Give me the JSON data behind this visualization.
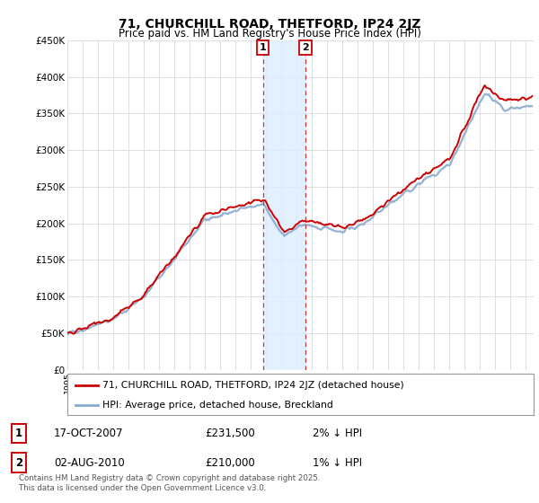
{
  "title_line1": "71, CHURCHILL ROAD, THETFORD, IP24 2JZ",
  "title_line2": "Price paid vs. HM Land Registry's House Price Index (HPI)",
  "ylabel_ticks": [
    "£0",
    "£50K",
    "£100K",
    "£150K",
    "£200K",
    "£250K",
    "£300K",
    "£350K",
    "£400K",
    "£450K"
  ],
  "ytick_vals": [
    0,
    50000,
    100000,
    150000,
    200000,
    250000,
    300000,
    350000,
    400000,
    450000
  ],
  "xmin": 1995.0,
  "xmax": 2025.5,
  "ymin": 0,
  "ymax": 450000,
  "legend_line1": "71, CHURCHILL ROAD, THETFORD, IP24 2JZ (detached house)",
  "legend_line2": "HPI: Average price, detached house, Breckland",
  "marker1_x": 2007.79,
  "marker1_label": "1",
  "marker1_date": "17-OCT-2007",
  "marker1_price": "£231,500",
  "marker1_hpi": "2% ↓ HPI",
  "marker2_x": 2010.58,
  "marker2_label": "2",
  "marker2_date": "02-AUG-2010",
  "marker2_price": "£210,000",
  "marker2_hpi": "1% ↓ HPI",
  "footer": "Contains HM Land Registry data © Crown copyright and database right 2025.\nThis data is licensed under the Open Government Licence v3.0.",
  "line_color_property": "#cc0000",
  "line_color_hpi": "#88aacc",
  "shade_color": "#ddeeff",
  "grid_color": "#dddddd",
  "bg_color": "#ffffff"
}
